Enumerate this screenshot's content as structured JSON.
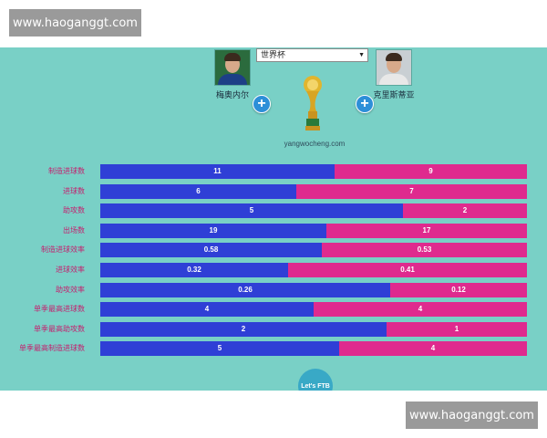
{
  "watermark_top": "www.haoganggt.com",
  "watermark_bottom": "www.haoganggt.com",
  "player_left": {
    "name": "梅奥内尔"
  },
  "player_right": {
    "name": "克里斯蒂亚"
  },
  "competition": {
    "selected": "世界杯"
  },
  "site_label": "yangwocheng.com",
  "fab_label": "Let's FTB",
  "colors": {
    "left": "#2f3fd6",
    "right": "#df2a8e",
    "panel": "#79d0c6",
    "label": "#c4216f"
  },
  "stats": [
    {
      "label": "制造进球数",
      "left": "11",
      "right": "9",
      "left_share": 0.55
    },
    {
      "label": "进球数",
      "left": "6",
      "right": "7",
      "left_share": 0.46
    },
    {
      "label": "助攻数",
      "left": "5",
      "right": "2",
      "left_share": 0.71
    },
    {
      "label": "出场数",
      "left": "19",
      "right": "17",
      "left_share": 0.53
    },
    {
      "label": "制造进球效率",
      "left": "0.58",
      "right": "0.53",
      "left_share": 0.52
    },
    {
      "label": "进球效率",
      "left": "0.32",
      "right": "0.41",
      "left_share": 0.44
    },
    {
      "label": "助攻效率",
      "left": "0.26",
      "right": "0.12",
      "left_share": 0.68
    },
    {
      "label": "单季最高进球数",
      "left": "4",
      "right": "4",
      "left_share": 0.5
    },
    {
      "label": "单季最高助攻数",
      "left": "2",
      "right": "1",
      "left_share": 0.67
    },
    {
      "label": "单季最高制造进球数",
      "left": "5",
      "right": "4",
      "left_share": 0.56
    }
  ]
}
